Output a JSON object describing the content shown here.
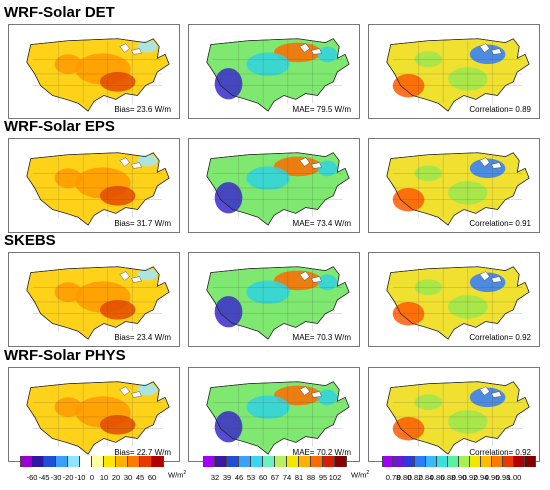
{
  "rows": [
    {
      "title": "WRF-Solar DET",
      "bias": "Bias= 23.6 W/m",
      "mae": "MAE= 79.5 W/m",
      "corr": "Correlation= 0.89"
    },
    {
      "title": "WRF-Solar EPS",
      "bias": "Bias= 31.7 W/m",
      "mae": "MAE= 73.4 W/m",
      "corr": "Correlation= 0.91"
    },
    {
      "title": "SKEBS",
      "bias": "Bias= 23.4 W/m",
      "mae": "MAE= 70.3 W/m",
      "corr": "Correlation= 0.92"
    },
    {
      "title": "WRF-Solar PHYS",
      "bias": "Bias= 22.7 W/m",
      "mae": "MAE= 70.2 W/m",
      "corr": "Correlation= 0.92"
    }
  ],
  "colorbars": {
    "bias": {
      "colors": [
        "#9b00d3",
        "#2e1aa0",
        "#1f4fd9",
        "#3aa0ff",
        "#8fe3ff",
        "#ffffff",
        "#ffffa0",
        "#ffe600",
        "#ffb000",
        "#ff7800",
        "#e83a00",
        "#b00000"
      ],
      "ticks": [
        "-60",
        "-45",
        "-30",
        "-20",
        "-10",
        "0",
        "10",
        "20",
        "30",
        "45",
        "60"
      ],
      "unit": "W/m",
      "unit_sup": "2"
    },
    "mae": {
      "colors": [
        "#a000ff",
        "#3a1aa0",
        "#1f4fd9",
        "#3aa0ff",
        "#3ad6f0",
        "#6cf0c0",
        "#b8f060",
        "#f0e600",
        "#ffb000",
        "#ff6a00",
        "#d81e00",
        "#8a0000"
      ],
      "ticks": [
        "32",
        "39",
        "46",
        "53",
        "60",
        "67",
        "74",
        "81",
        "88",
        "95",
        "102"
      ],
      "unit": "W/m",
      "unit_sup": "2"
    },
    "corr": {
      "colors": [
        "#a000ff",
        "#6a1ad0",
        "#2e3ad8",
        "#2f7bff",
        "#36b9ff",
        "#3ae0e0",
        "#5af0a0",
        "#a6f050",
        "#f0e600",
        "#ffbb00",
        "#ff7a00",
        "#e83a00",
        "#b00000",
        "#800000"
      ],
      "ticks": [
        "0.78",
        "0.80",
        "0.82",
        "0.84",
        "0.86",
        "0.88",
        "0.90",
        "0.92",
        "0.94",
        "0.96",
        "0.98",
        "1.00"
      ]
    }
  },
  "panel_colors": {
    "bias": {
      "base": "#ffd21a",
      "mid": "#ff9a00",
      "hot": "#e34a00",
      "cool": "#9fe8ff"
    },
    "mae": {
      "base": "#7ee870",
      "mid": "#2fd2e0",
      "hot": "#ff6a00",
      "cool": "#3a2acb"
    },
    "corr": {
      "base": "#f0e030",
      "mid": "#9be64d",
      "hot": "#ff5a00",
      "cool": "#2f7bff"
    }
  }
}
